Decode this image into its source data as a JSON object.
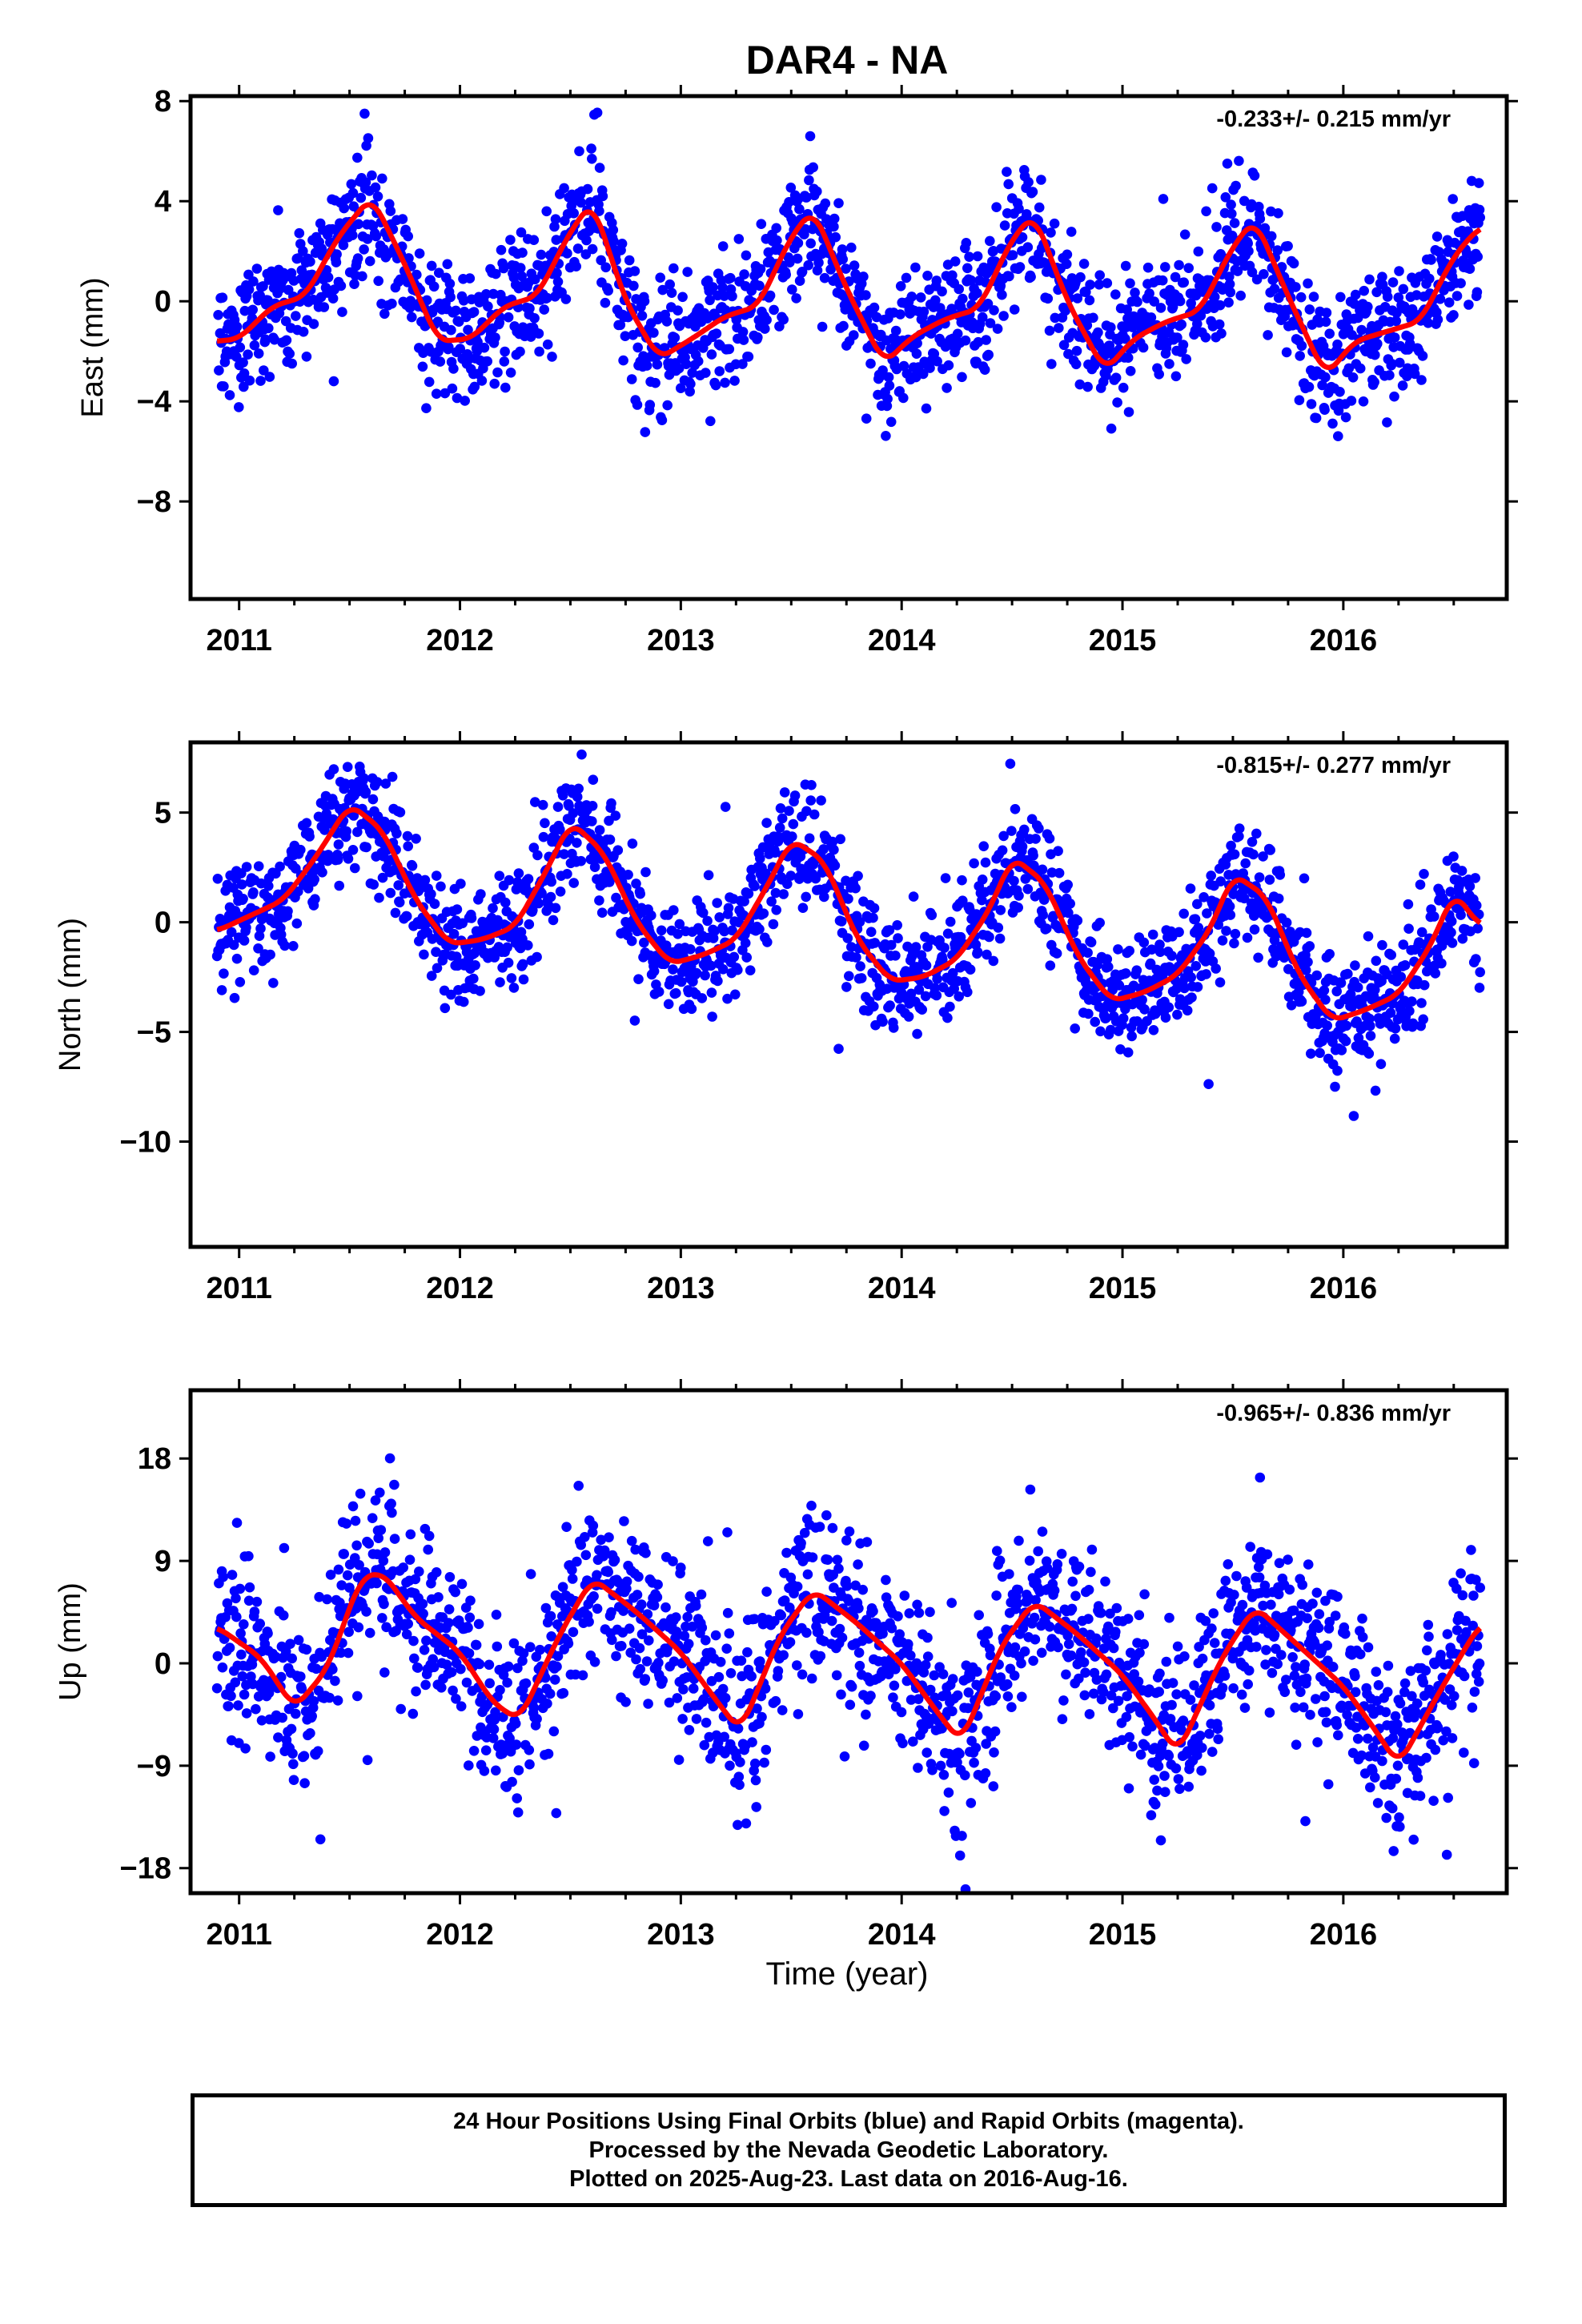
{
  "title": "DAR4 - NA",
  "xlabel": "Time (year)",
  "colors": {
    "points": "#0000ff",
    "fit": "#ff0000",
    "axis": "#000000",
    "background": "#ffffff"
  },
  "footer": {
    "line1": "24 Hour Positions Using Final Orbits (blue) and Rapid Orbits (magenta).",
    "line2": "Processed by the Nevada Geodetic Laboratory.",
    "line3": "Plotted on 2025-Aug-23. Last data on 2016-Aug-16."
  },
  "chart_data": [
    {
      "type": "scatter",
      "ylabel": "East (mm)",
      "rate_label": "-0.233+/- 0.215 mm/yr",
      "xlim": [
        2010.78,
        2016.74
      ],
      "ylim": [
        -11.9,
        8.2
      ],
      "xticks": [
        "2011",
        "2012",
        "2013",
        "2014",
        "2015",
        "2016"
      ],
      "yticks": [
        8,
        4,
        0,
        -4,
        -8
      ],
      "ytick_labels": [
        "8",
        "4",
        "0",
        "−4",
        "−8"
      ],
      "series": [
        {
          "kind": "points",
          "x_start": 2010.9,
          "x_end": 2016.62,
          "seasonal_amplitude": 2.8,
          "scatter": 1.3
        },
        {
          "kind": "fit",
          "x": [
            2010.9,
            2011.0,
            2011.15,
            2011.3,
            2011.45,
            2011.6,
            2011.75,
            2011.9,
            2012.05,
            2012.2,
            2012.35,
            2012.5,
            2012.6,
            2012.75,
            2012.9,
            2013.05,
            2013.2,
            2013.35,
            2013.5,
            2013.6,
            2013.75,
            2013.92,
            2014.05,
            2014.2,
            2014.35,
            2014.5,
            2014.6,
            2014.75,
            2014.92,
            2015.05,
            2015.2,
            2015.35,
            2015.5,
            2015.6,
            2015.75,
            2015.92,
            2016.05,
            2016.2,
            2016.35,
            2016.5,
            2016.62
          ],
          "y": [
            -1.6,
            -1.5,
            -0.2,
            0.2,
            2.6,
            4.2,
            1.5,
            -1.6,
            -1.5,
            -0.2,
            0.2,
            2.8,
            4.0,
            0.0,
            -2.3,
            -1.5,
            -0.6,
            -0.2,
            2.6,
            3.7,
            0.5,
            -2.5,
            -1.4,
            -0.7,
            -0.3,
            2.5,
            3.5,
            0.0,
            -2.8,
            -1.5,
            -0.8,
            -0.4,
            2.2,
            3.3,
            0.2,
            -3.0,
            -1.6,
            -1.2,
            -0.8,
            1.8,
            3.0
          ]
        }
      ]
    },
    {
      "type": "scatter",
      "ylabel": "North (mm)",
      "rate_label": "-0.815+/- 0.277 mm/yr",
      "xlim": [
        2010.78,
        2016.74
      ],
      "ylim": [
        -14.8,
        8.2
      ],
      "xticks": [
        "2011",
        "2012",
        "2013",
        "2014",
        "2015",
        "2016"
      ],
      "yticks": [
        5,
        0,
        -5,
        -10
      ],
      "ytick_labels": [
        "5",
        "0",
        "−5",
        "−10"
      ],
      "series": [
        {
          "kind": "points",
          "x_start": 2010.9,
          "x_end": 2016.62,
          "seasonal_amplitude": 3.3,
          "scatter": 1.3
        },
        {
          "kind": "fit",
          "x": [
            2010.9,
            2011.05,
            2011.2,
            2011.35,
            2011.5,
            2011.65,
            2011.8,
            2011.95,
            2012.1,
            2012.25,
            2012.4,
            2012.5,
            2012.65,
            2012.8,
            2012.95,
            2013.1,
            2013.25,
            2013.4,
            2013.5,
            2013.65,
            2013.8,
            2013.95,
            2014.1,
            2014.25,
            2014.4,
            2014.5,
            2014.65,
            2014.8,
            2014.95,
            2015.1,
            2015.25,
            2015.4,
            2015.5,
            2015.65,
            2015.8,
            2015.95,
            2016.1,
            2016.25,
            2016.4,
            2016.5,
            2016.62
          ],
          "y": [
            -0.4,
            0.3,
            1.0,
            3.0,
            5.4,
            4.2,
            1.0,
            -1.0,
            -0.8,
            -0.2,
            2.5,
            4.6,
            3.2,
            0.0,
            -1.9,
            -1.5,
            -0.8,
            1.8,
            3.8,
            2.8,
            -0.8,
            -2.7,
            -2.5,
            -1.7,
            0.6,
            3.0,
            1.8,
            -1.6,
            -3.6,
            -3.2,
            -2.4,
            -0.3,
            2.2,
            1.2,
            -2.4,
            -4.5,
            -4.0,
            -3.3,
            -1.0,
            1.4,
            -0.2
          ]
        }
      ]
    },
    {
      "type": "scatter",
      "ylabel": "Up (mm)",
      "rate_label": "-0.965+/- 0.836 mm/yr",
      "xlim": [
        2010.78,
        2016.74
      ],
      "ylim": [
        -20.2,
        24.0
      ],
      "xticks": [
        "2011",
        "2012",
        "2013",
        "2014",
        "2015",
        "2016"
      ],
      "yticks": [
        18,
        9,
        0,
        -9,
        -18
      ],
      "ytick_labels": [
        "18",
        "9",
        "0",
        "−9",
        "−18"
      ],
      "series": [
        {
          "kind": "points",
          "x_start": 2010.9,
          "x_end": 2016.62,
          "seasonal_amplitude": 6.0,
          "scatter": 3.8
        },
        {
          "kind": "fit",
          "x": [
            2010.9,
            2011.1,
            2011.25,
            2011.4,
            2011.55,
            2011.65,
            2011.8,
            2012.0,
            2012.15,
            2012.27,
            2012.45,
            2012.6,
            2012.8,
            2013.0,
            2013.15,
            2013.27,
            2013.45,
            2013.6,
            2013.8,
            2014.0,
            2014.15,
            2014.27,
            2014.45,
            2014.6,
            2014.8,
            2015.0,
            2015.15,
            2015.25,
            2015.45,
            2015.6,
            2015.8,
            2016.0,
            2016.15,
            2016.25,
            2016.45,
            2016.62
          ],
          "y": [
            3.2,
            0.5,
            -4.0,
            -0.5,
            7.5,
            8.0,
            4.0,
            1.0,
            -3.5,
            -5.0,
            2.5,
            7.5,
            4.5,
            1.0,
            -3.0,
            -6.0,
            2.5,
            6.5,
            3.5,
            0.0,
            -4.0,
            -7.0,
            1.5,
            5.5,
            2.5,
            -1.0,
            -5.0,
            -8.0,
            0.5,
            5.0,
            1.5,
            -2.0,
            -6.0,
            -9.0,
            -2.0,
            3.5
          ]
        }
      ]
    }
  ]
}
